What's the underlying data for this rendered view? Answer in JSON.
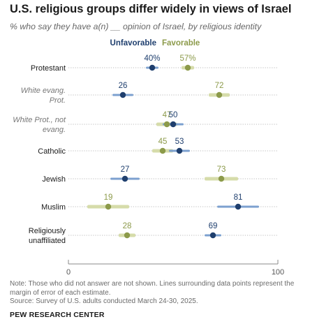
{
  "title": "U.S. religious groups differ widely in views of Israel",
  "subtitle": "% who say they have a(n) __ opinion of Israel, by religious identity",
  "note": "Note: Those who did not answer are not shown. Lines surrounding data points represent the margin of error of each estimate.",
  "source": "Source: Survey of U.S. adults conducted March 24-30, 2025.",
  "brand": "PEW RESEARCH CENTER",
  "colors": {
    "unfavorable": "#1f3f6e",
    "unfavorable_moe": "#7ca0cf",
    "favorable": "#8c9a4a",
    "favorable_moe": "#d6dcaa",
    "label_text": "#1a1a1a",
    "label_subgroup": "#777777",
    "gridline": "#bbbbbb",
    "axis": "#888888"
  },
  "chart_data": {
    "type": "dot",
    "xlim": [
      0,
      100
    ],
    "x_ticks": [
      "0",
      "100"
    ],
    "legend": {
      "placement": "top-center"
    },
    "series": [
      {
        "name": "Unfavorable",
        "color": "#1f3f6e"
      },
      {
        "name": "Favorable",
        "color": "#8c9a4a"
      }
    ],
    "rows": [
      {
        "label": [
          "Protestant"
        ],
        "subgroup": false,
        "unfavorable": 40,
        "unfav_label": "40%",
        "unfav_moe": 3,
        "favorable": 57,
        "fav_label": "57%",
        "fav_moe": 3
      },
      {
        "label": [
          "White evang.",
          "Prot."
        ],
        "subgroup": true,
        "unfavorable": 26,
        "unfav_label": "26",
        "unfav_moe": 5,
        "favorable": 72,
        "fav_label": "72",
        "fav_moe": 5
      },
      {
        "label": [
          "White Prot., not",
          "evang."
        ],
        "subgroup": true,
        "unfavorable": 50,
        "unfav_label": "50",
        "unfav_moe": 5,
        "favorable": 47,
        "fav_label": "47",
        "fav_moe": 5
      },
      {
        "label": [
          "Catholic"
        ],
        "subgroup": false,
        "unfavorable": 53,
        "unfav_label": "53",
        "unfav_moe": 5,
        "favorable": 45,
        "fav_label": "45",
        "fav_moe": 5
      },
      {
        "label": [
          "Jewish"
        ],
        "subgroup": false,
        "unfavorable": 27,
        "unfav_label": "27",
        "unfav_moe": 7,
        "favorable": 73,
        "fav_label": "73",
        "fav_moe": 8
      },
      {
        "label": [
          "Muslim"
        ],
        "subgroup": false,
        "unfavorable": 81,
        "unfav_label": "81",
        "unfav_moe": 10,
        "favorable": 19,
        "fav_label": "19",
        "fav_moe": 10
      },
      {
        "label": [
          "Religiously",
          "unaffiliated"
        ],
        "subgroup": false,
        "unfavorable": 69,
        "unfav_label": "69",
        "unfav_moe": 4,
        "favorable": 28,
        "fav_label": "28",
        "fav_moe": 4
      }
    ]
  }
}
